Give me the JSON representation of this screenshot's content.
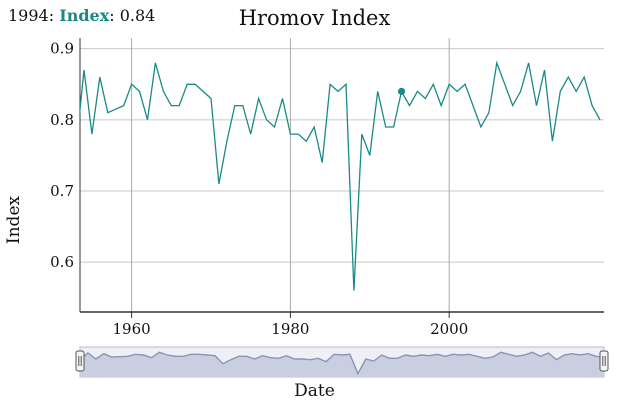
{
  "readout": {
    "year": "1994:",
    "series": "Index",
    "value": ": 0.84"
  },
  "colors": {
    "line": "#1a8a86",
    "grid": "#c8c8c8",
    "axis": "#333333",
    "navigator_fill": "#c9cfe0",
    "navigator_line": "#8a95b5"
  },
  "chart_data": {
    "type": "line",
    "title": "Hromov Index",
    "xlabel": "Date",
    "ylabel": "Index",
    "xlim": [
      1953.5,
      2019.5
    ],
    "ylim": [
      0.53,
      0.915
    ],
    "x_ticks": [
      1960,
      1980,
      2000
    ],
    "y_ticks": [
      0.6,
      0.7,
      0.8,
      0.9
    ],
    "grid": true,
    "highlight": {
      "x": 1994,
      "y": 0.84
    },
    "series": [
      {
        "name": "Index",
        "x": [
          1953,
          1954,
          1955,
          1956,
          1957,
          1958,
          1959,
          1960,
          1961,
          1962,
          1963,
          1964,
          1965,
          1966,
          1967,
          1968,
          1969,
          1970,
          1971,
          1972,
          1973,
          1974,
          1975,
          1976,
          1977,
          1978,
          1979,
          1980,
          1981,
          1982,
          1983,
          1984,
          1985,
          1986,
          1987,
          1988,
          1989,
          1990,
          1991,
          1992,
          1993,
          1994,
          1995,
          1996,
          1997,
          1998,
          1999,
          2000,
          2001,
          2002,
          2003,
          2004,
          2005,
          2006,
          2007,
          2008,
          2009,
          2010,
          2011,
          2012,
          2013,
          2014,
          2015,
          2016,
          2017,
          2018,
          2019
        ],
        "y": [
          0.76,
          0.87,
          0.78,
          0.86,
          0.81,
          0.815,
          0.82,
          0.85,
          0.84,
          0.8,
          0.88,
          0.84,
          0.82,
          0.82,
          0.85,
          0.85,
          0.84,
          0.83,
          0.71,
          0.77,
          0.82,
          0.82,
          0.78,
          0.83,
          0.8,
          0.79,
          0.83,
          0.78,
          0.78,
          0.77,
          0.79,
          0.74,
          0.85,
          0.84,
          0.85,
          0.56,
          0.78,
          0.75,
          0.84,
          0.79,
          0.79,
          0.84,
          0.82,
          0.84,
          0.83,
          0.85,
          0.82,
          0.85,
          0.84,
          0.85,
          0.82,
          0.79,
          0.81,
          0.88,
          0.85,
          0.82,
          0.84,
          0.88,
          0.82,
          0.87,
          0.77,
          0.84,
          0.86,
          0.84,
          0.86,
          0.82,
          0.8
        ]
      }
    ]
  }
}
